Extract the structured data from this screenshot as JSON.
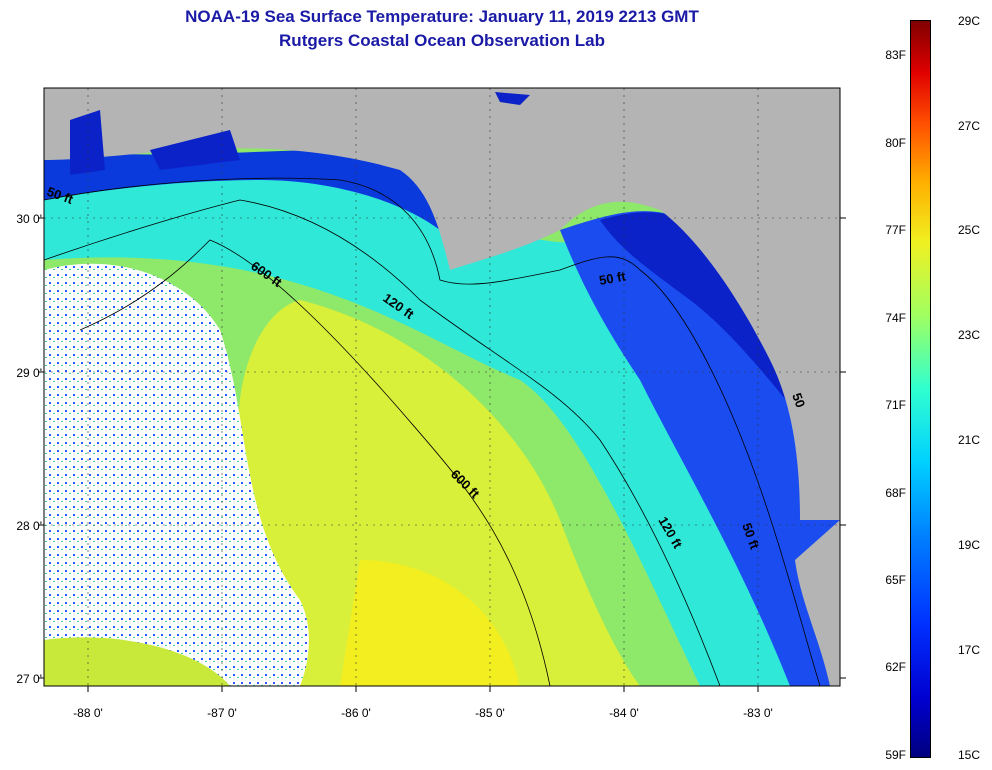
{
  "title": {
    "line1": "NOAA-19 Sea Surface Temperature:  January 11, 2019 2213 GMT",
    "line2": "Rutgers Coastal Ocean Observation Lab"
  },
  "map": {
    "lat_ticks": [
      "30 0'",
      "29 0'",
      "28 0'",
      "27 0'"
    ],
    "lon_ticks": [
      "-88 0'",
      "-87 0'",
      "-86 0'",
      "-85 0'",
      "-84 0'",
      "-83 0'"
    ],
    "contour_labels": [
      "50 ft",
      "600 ft",
      "120 ft",
      "50 ft",
      "600 ft",
      "120 ft",
      "50 ft",
      "50"
    ]
  },
  "colorbar": {
    "fahrenheit": [
      "83F",
      "80F",
      "77F",
      "74F",
      "71F",
      "68F",
      "65F",
      "62F",
      "59F"
    ],
    "celsius": [
      "29C",
      "27C",
      "25C",
      "23C",
      "21C",
      "19C",
      "17C",
      "15C"
    ]
  },
  "colors": {
    "land": "#b4b4b4",
    "title": "#1a1aa6"
  }
}
